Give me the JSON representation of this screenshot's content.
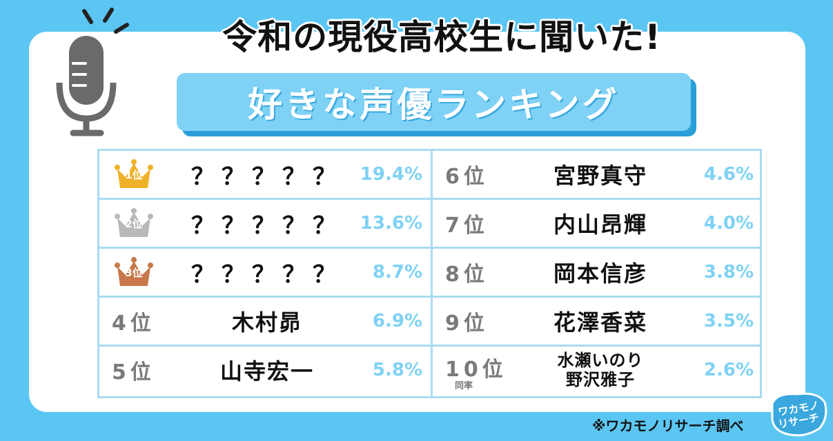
{
  "header": {
    "title": "令和の現役高校生に聞いた!",
    "banner": "好きな声優ランキング"
  },
  "ranking": [
    {
      "rank": "1位",
      "name": "？？？？？",
      "percent": "19.4%",
      "crown": "gold"
    },
    {
      "rank": "2位",
      "name": "？？？？？",
      "percent": "13.6%",
      "crown": "silver"
    },
    {
      "rank": "3位",
      "name": "？？？？？",
      "percent": "8.7%",
      "crown": "bronze"
    },
    {
      "rank": "4位",
      "name": "木村昴",
      "percent": "6.9%"
    },
    {
      "rank": "5位",
      "name": "山寺宏一",
      "percent": "5.8%"
    },
    {
      "rank": "6位",
      "name": "宮野真守",
      "percent": "4.6%"
    },
    {
      "rank": "7位",
      "name": "内山昂輝",
      "percent": "4.0%"
    },
    {
      "rank": "8位",
      "name": "岡本信彦",
      "percent": "3.8%"
    },
    {
      "rank": "9位",
      "name": "花澤香菜",
      "percent": "3.5%"
    },
    {
      "rank": "10位",
      "tie": "同率",
      "names": [
        "水瀬いのり",
        "野沢雅子"
      ],
      "percent": "2.6%"
    }
  ],
  "footer": {
    "source": "※ワカモノリサーチ調べ"
  },
  "logo": {
    "text_line1": "ワカモノ",
    "text_line2": "リサーチ"
  },
  "colors": {
    "background": "#5bc6f2",
    "accent": "#7fd2f5",
    "border": "#a9dbf2",
    "gold": "#f0b12a",
    "silver": "#b9b9b9",
    "bronze": "#c8784a"
  },
  "icons": [
    "microphone-icon",
    "crown-icon"
  ]
}
